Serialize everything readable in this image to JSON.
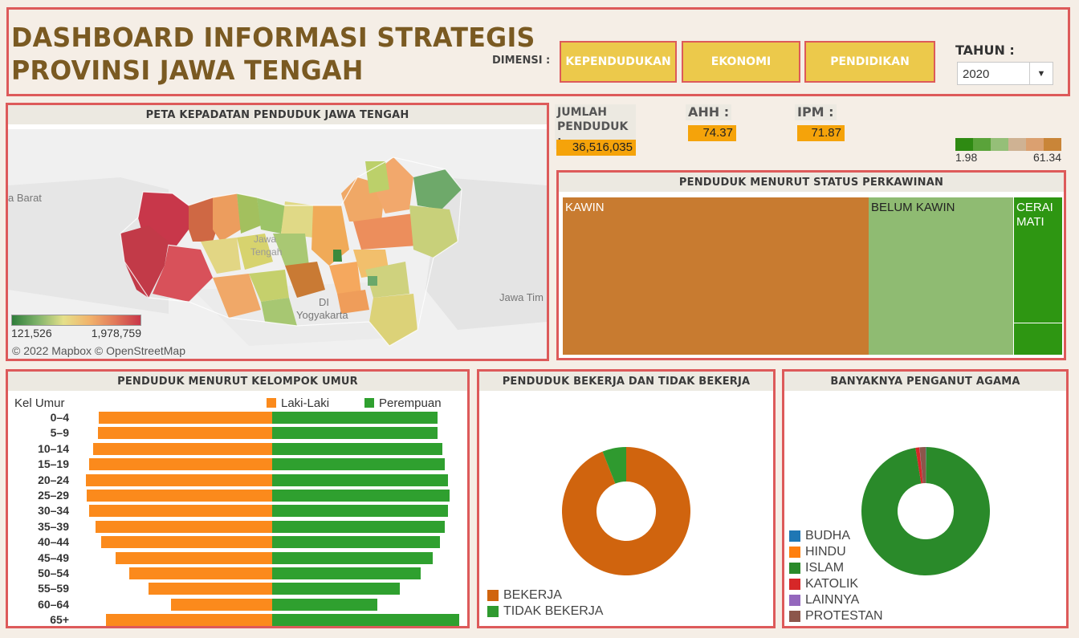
{
  "header": {
    "title_line1": "DASHBOARD INFORMASI STRATEGIS",
    "title_line2": "PROVINSI JAWA TENGAH",
    "dimensi_label": "DIMENSI :",
    "buttons": [
      "KEPENDUDUKAN",
      "EKONOMI",
      "PENDIDIKAN"
    ],
    "tahun_label": "TAHUN :",
    "tahun_value": "2020"
  },
  "map": {
    "title": "PETA KEPADATAN PENDUDUK JAWA TENGAH",
    "place_labels": [
      "a Barat",
      "Jawa Tim",
      "DI",
      "Yogyakarta",
      "Jawa",
      "Tengah"
    ],
    "legend_min": "121,526",
    "legend_max": "1,978,759",
    "attribution": "© 2022 Mapbox © OpenStreetMap"
  },
  "kpis": {
    "jumlah_label_1": "JUMLAH",
    "jumlah_label_2": "PENDUDUK :",
    "jumlah_value": "36,516,035",
    "ahh_label": "AHH :",
    "ahh_value": "74.37",
    "ipm_label": "IPM :",
    "ipm_value": "71.87"
  },
  "color_legend": {
    "min": "1.98",
    "max": "61.34",
    "colors": [
      "#2e8a12",
      "#5aa33a",
      "#95bf78",
      "#cfb293",
      "#dba070",
      "#c98538"
    ]
  },
  "marital": {
    "title": "PENDUDUK MENURUT STATUS PERKAWINAN",
    "labels": [
      "KAWIN",
      "BELUM KAWIN",
      "CERAI",
      "MATI"
    ]
  },
  "colors": {
    "panel_border": "#dd5a5a",
    "title": "#7a5a22",
    "button": "#ecc94b",
    "kpi": "#f5a30a",
    "male": "#fb8a1c",
    "female": "#2fa02f",
    "kawin": "#c87b30",
    "belum_kawin": "#8fbb72",
    "cerai_mati": "#2e9612",
    "bekerja": "#d0640e",
    "tidak_bekerja": "#2f9a2f",
    "islam": "#2a8a2a"
  },
  "chart_data": [
    {
      "type": "bar",
      "title": "PENDUDUK MENURUT KELOMPOK UMUR",
      "xlabel": "",
      "ylabel": "Kel Umur",
      "categories": [
        "0–4",
        "5–9",
        "10–14",
        "15–19",
        "20–24",
        "25–29",
        "30–34",
        "35–39",
        "40–44",
        "45–49",
        "50–54",
        "55–59",
        "60–64",
        "65+"
      ],
      "series": [
        {
          "name": "Laki-Laki",
          "values": [
            1440000,
            1450000,
            1490000,
            1520000,
            1550000,
            1540000,
            1520000,
            1470000,
            1420000,
            1300000,
            1190000,
            1030000,
            840000,
            1380000
          ]
        },
        {
          "name": "Perempuan",
          "values": [
            1370000,
            1370000,
            1410000,
            1430000,
            1460000,
            1470000,
            1460000,
            1430000,
            1390000,
            1330000,
            1230000,
            1060000,
            870000,
            1550000
          ]
        }
      ]
    },
    {
      "type": "pie",
      "title": "PENDUDUK BEKERJA DAN TIDAK BEKERJA",
      "categories": [
        "BEKERJA",
        "TIDAK BEKERJA"
      ],
      "values": [
        94,
        6
      ],
      "colors": [
        "#d0640e",
        "#2f9a2f"
      ]
    },
    {
      "type": "pie",
      "title": "BANYAKNYA PENGANUT AGAMA",
      "categories": [
        "BUDHA",
        "HINDU",
        "ISLAM",
        "KATOLIK",
        "LAINNYA",
        "PROTESTAN"
      ],
      "values": [
        0.1,
        0.05,
        97.3,
        1.0,
        0.05,
        1.5
      ],
      "colors": [
        "#1f77b4",
        "#ff7f0e",
        "#2a8a2a",
        "#d62728",
        "#9467bd",
        "#8c564b"
      ]
    }
  ]
}
